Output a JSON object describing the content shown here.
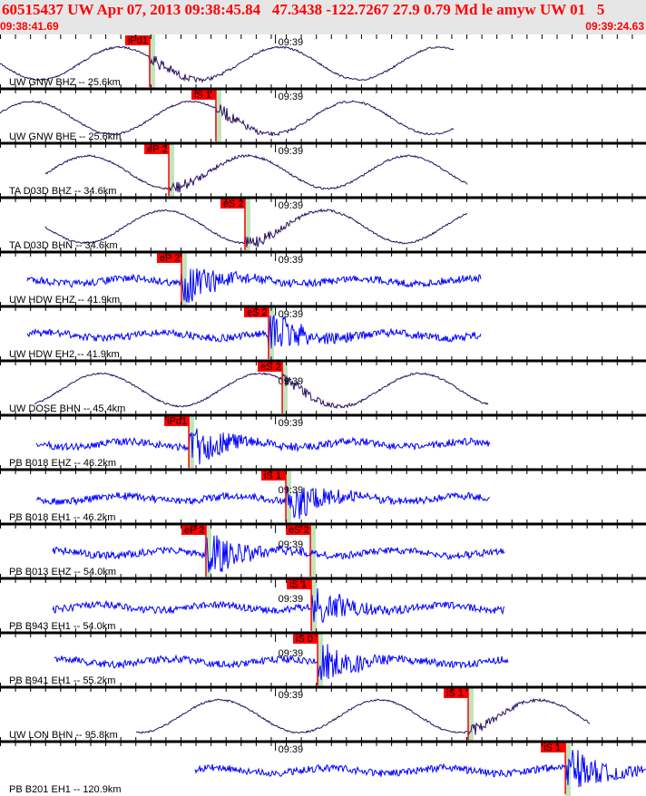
{
  "header": {
    "title": "60515437 UW Apr 07, 2013 09:38:45.84   47.3438 -122.7267 27.9 0.79 Md le amyw UW 01   5",
    "start_time": "09:38:41.69",
    "end_time": "09:39:24.63",
    "minute_label": "09:39",
    "span_seconds": 42.94
  },
  "colors": {
    "broadband": "#2b0f5e",
    "short_period": "#0000ff",
    "pick": "#ff0000",
    "theoretical": "#bfe5bf",
    "header_text": "#ff0000"
  },
  "traces": [
    {
      "label": "UW GNW BHZ -- 25.6km",
      "type": "broadband",
      "picks": [
        {
          "label": "iPd1",
          "time_s": 9.95
        }
      ]
    },
    {
      "label": "UW GNW BHE -- 25.6km",
      "type": "broadband",
      "picks": [
        {
          "label": "iS 1",
          "time_s": 14.35
        }
      ]
    },
    {
      "label": "TA D03D BHZ -- 34.6km",
      "type": "broadband",
      "picks": [
        {
          "label": "eP 2",
          "time_s": 11.22
        }
      ]
    },
    {
      "label": "TA D03D BHN -- 34.6km",
      "type": "broadband",
      "picks": [
        {
          "label": "eS 2",
          "time_s": 16.28
        }
      ]
    },
    {
      "label": "UW HDW EHZ -- 41.9km",
      "type": "short_period",
      "picks": [
        {
          "label": "eP 2",
          "time_s": 12.06
        }
      ]
    },
    {
      "label": "UW HDW EH2 -- 41.9km",
      "type": "short_period",
      "picks": [
        {
          "label": "eS 2",
          "time_s": 17.85
        }
      ]
    },
    {
      "label": "UW DOSE BHN -- 45.4km",
      "type": "broadband",
      "picks": [
        {
          "label": "eS 2",
          "time_s": 18.76
        }
      ]
    },
    {
      "label": "PB B018 EHZ -- 46.2km",
      "type": "short_period",
      "picks": [
        {
          "label": "iPd1",
          "time_s": 12.55
        }
      ]
    },
    {
      "label": "PB B018 EH1 -- 46.2km",
      "type": "short_period",
      "picks": [
        {
          "label": "iS 1",
          "time_s": 19.0
        }
      ]
    },
    {
      "label": "PB B013 EHZ -- 54.0km",
      "type": "short_period",
      "picks": [
        {
          "label": "eP 2",
          "time_s": 13.69
        },
        {
          "label": "eS 2",
          "time_s": 20.63
        }
      ]
    },
    {
      "label": "PB B943 EH1 -- 54.0km",
      "type": "short_period",
      "picks": [
        {
          "label": "iS 1",
          "time_s": 20.69
        }
      ]
    },
    {
      "label": "PB B941 EH1 -- 55.2km",
      "type": "short_period",
      "picks": [
        {
          "label": "iS 0",
          "time_s": 21.11
        }
      ]
    },
    {
      "label": "UW LON BHN -- 95.8km",
      "type": "broadband",
      "picks": [
        {
          "label": "iS 1",
          "time_s": 31.12
        }
      ]
    },
    {
      "label": "PB B201 EH1 -- 120.9km",
      "type": "short_period",
      "picks": [
        {
          "label": "iS 1",
          "time_s": 37.58
        }
      ]
    }
  ]
}
